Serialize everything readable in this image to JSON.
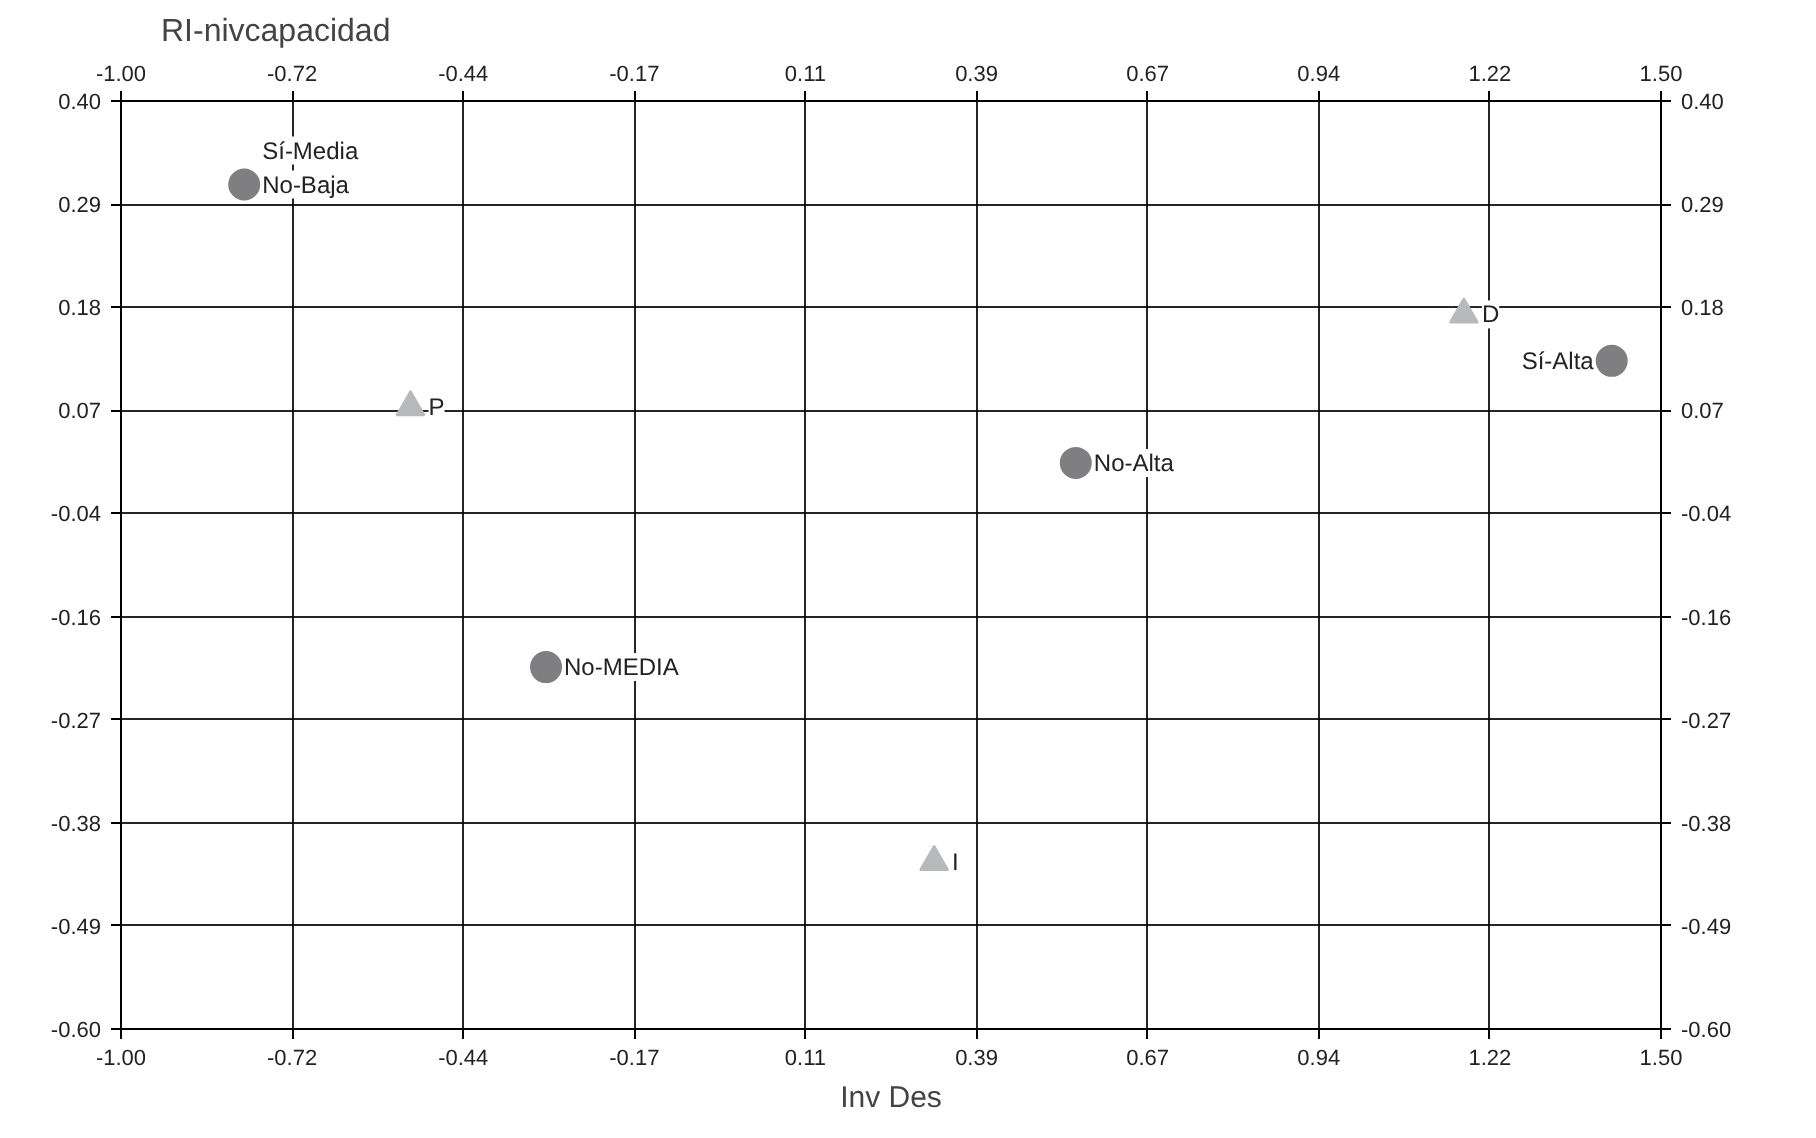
{
  "chart_data": {
    "type": "scatter",
    "title": "RI-nivcapacidad",
    "xlabel": "Inv Des",
    "series": [
      {
        "color": "#7f7f81",
        "marker": "circle",
        "x": [
          -0.8,
          0.55,
          1.42,
          -0.31
        ],
        "values": [
          0.31,
          0.01,
          0.12,
          -0.21
        ]
      },
      {
        "color": "#b8b9bb",
        "marker": "triangle",
        "x": [
          -0.53,
          1.18,
          0.32
        ],
        "values": [
          0.07,
          0.17,
          -0.42
        ]
      }
    ],
    "annotations": [
      {
        "text": "Sí-Media\nNo-Baja",
        "x": -0.8,
        "y": 0.31
      },
      {
        "text": "No-Alta",
        "x": 0.55,
        "y": 0.01
      },
      {
        "text": "Sí-Alta",
        "x": 1.42,
        "y": 0.12
      },
      {
        "text": "No-MEDIA",
        "x": -0.31,
        "y": -0.21
      },
      {
        "text": "P",
        "x": -0.53,
        "y": 0.07
      },
      {
        "text": "D",
        "x": 1.18,
        "y": 0.17
      },
      {
        "text": "I",
        "x": 0.32,
        "y": -0.42
      }
    ],
    "xlim": [
      -1.0,
      1.5
    ],
    "ylim": [
      -0.6,
      0.4
    ],
    "x2lim": [
      -1.0,
      1.5
    ],
    "y2lim": [
      -0.6,
      0.4
    ],
    "xticks": [
      {
        "value": -1.0,
        "label": "-1.00"
      },
      {
        "value": -0.7222,
        "label": "-0.72"
      },
      {
        "value": -0.4444,
        "label": "-0.44"
      },
      {
        "value": -0.1667,
        "label": "-0.17"
      },
      {
        "value": 0.1111,
        "label": "0.11"
      },
      {
        "value": 0.3889,
        "label": "0.39"
      },
      {
        "value": 0.6667,
        "label": "0.67"
      },
      {
        "value": 0.9444,
        "label": "0.94"
      },
      {
        "value": 1.2222,
        "label": "1.22"
      },
      {
        "value": 1.5,
        "label": "1.50"
      }
    ],
    "x2ticks": [
      {
        "value": -1.0,
        "label": "-1.00"
      },
      {
        "value": -0.7222,
        "label": "-0.72"
      },
      {
        "value": -0.4444,
        "label": "-0.44"
      },
      {
        "value": -0.1667,
        "label": "-0.17"
      },
      {
        "value": 0.1111,
        "label": "0.11"
      },
      {
        "value": 0.3889,
        "label": "0.39"
      },
      {
        "value": 0.6667,
        "label": "0.67"
      },
      {
        "value": 0.9444,
        "label": "0.94"
      },
      {
        "value": 1.2222,
        "label": "1.22"
      },
      {
        "value": 1.5,
        "label": "1.50"
      }
    ],
    "yticks": [
      {
        "value": -0.6,
        "label": "-0.60"
      },
      {
        "value": -0.4889,
        "label": "-0.49"
      },
      {
        "value": -0.3778,
        "label": "-0.38"
      },
      {
        "value": -0.2667,
        "label": "-0.27"
      },
      {
        "value": -0.1556,
        "label": "-0.16"
      },
      {
        "value": -0.0444,
        "label": "-0.04"
      },
      {
        "value": 0.0667,
        "label": "0.07"
      },
      {
        "value": 0.1778,
        "label": "0.18"
      },
      {
        "value": 0.2889,
        "label": "0.29"
      },
      {
        "value": 0.4,
        "label": "0.40"
      }
    ],
    "y2ticks": [
      {
        "value": -0.6,
        "label": "-0.60"
      },
      {
        "value": -0.4889,
        "label": "-0.49"
      },
      {
        "value": -0.3778,
        "label": "-0.38"
      },
      {
        "value": -0.2667,
        "label": "-0.27"
      },
      {
        "value": -0.1556,
        "label": "-0.16"
      },
      {
        "value": -0.0444,
        "label": "-0.04"
      },
      {
        "value": 0.0667,
        "label": "0.07"
      },
      {
        "value": 0.1778,
        "label": "0.18"
      },
      {
        "value": 0.2889,
        "label": "0.29"
      },
      {
        "value": 0.4,
        "label": "0.40"
      }
    ],
    "grid": true
  }
}
